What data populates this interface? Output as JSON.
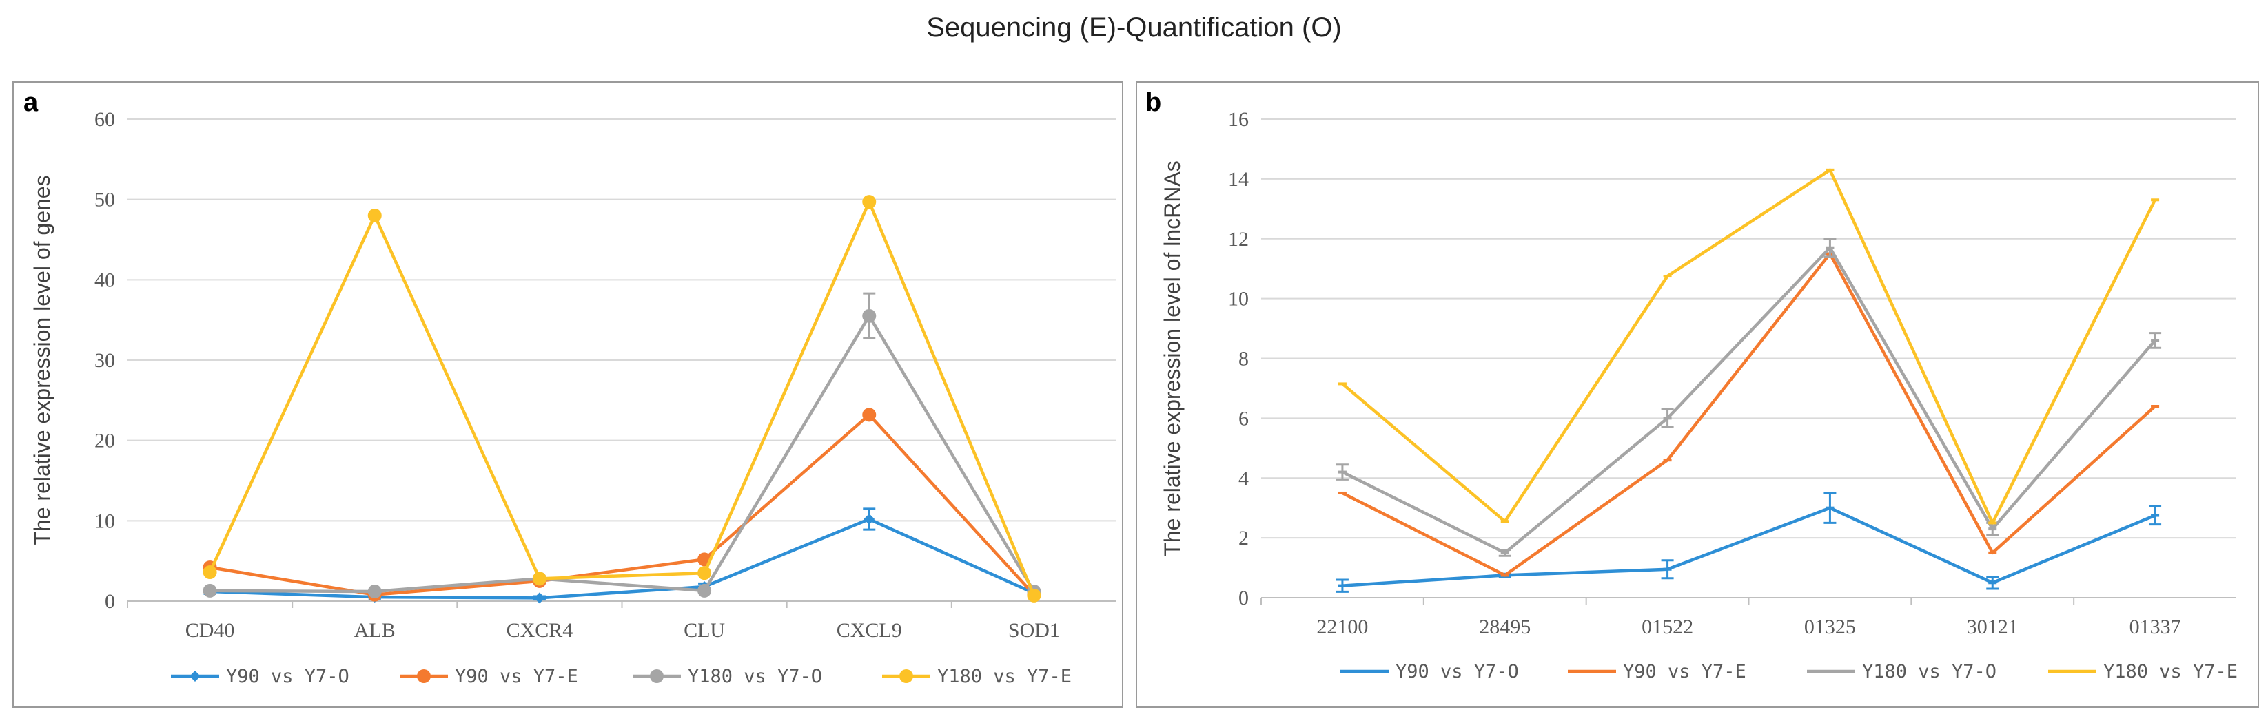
{
  "figure_title": "Sequencing (E)-Quantification (O)",
  "colors": {
    "Y90 vs Y7-O": "#2e8fd6",
    "Y90 vs Y7-E": "#f47a2f",
    "Y180 vs Y7-O": "#a5a5a5",
    "Y180 vs Y7-E": "#fcc226",
    "grid": "#d9d9d9",
    "axis": "#bfbfbf"
  },
  "chart_data": [
    {
      "panel": "a",
      "type": "line",
      "ylabel": "The relative expression level of genes",
      "xlabel": "",
      "ylim": [
        0,
        60
      ],
      "yticks": [
        0,
        10,
        20,
        30,
        40,
        50,
        60
      ],
      "categories": [
        "CD40",
        "ALB",
        "CXCR4",
        "CLU",
        "CXCL9",
        "SOD1"
      ],
      "grid": true,
      "legend": "bottom",
      "series": [
        {
          "name": "Y90 vs Y7-O",
          "marker": "diamond",
          "values": [
            1.2,
            0.5,
            0.4,
            1.8,
            10.2,
            1.0
          ],
          "errors": [
            0.3,
            0.2,
            0.2,
            0.4,
            1.3,
            0.2
          ]
        },
        {
          "name": "Y90 vs Y7-E",
          "marker": "circle",
          "values": [
            4.2,
            0.8,
            2.5,
            5.2,
            23.2,
            0.8
          ],
          "errors": null
        },
        {
          "name": "Y180 vs Y7-O",
          "marker": "circle",
          "values": [
            1.3,
            1.2,
            2.8,
            1.3,
            35.5,
            1.2
          ],
          "errors": [
            0.3,
            0.2,
            0.3,
            0.3,
            2.8,
            0.2
          ]
        },
        {
          "name": "Y180 vs Y7-E",
          "marker": "circle",
          "values": [
            3.6,
            48.0,
            2.8,
            3.5,
            49.7,
            0.7
          ],
          "errors": null
        }
      ]
    },
    {
      "panel": "b",
      "type": "line",
      "ylabel": "The relative expression level of lncRNAs",
      "xlabel": "",
      "ylim": [
        0,
        16
      ],
      "yticks": [
        0,
        2,
        4,
        6,
        8,
        10,
        12,
        14,
        16
      ],
      "categories": [
        "22100",
        "28495",
        "01522",
        "01325",
        "30121",
        "01337"
      ],
      "grid": true,
      "legend": "bottom",
      "series": [
        {
          "name": "Y90 vs Y7-O",
          "marker": "dash",
          "values": [
            0.4,
            0.75,
            0.95,
            3.0,
            0.5,
            2.75
          ],
          "errors": [
            0.2,
            0.05,
            0.3,
            0.5,
            0.2,
            0.3
          ]
        },
        {
          "name": "Y90 vs Y7-E",
          "marker": "dash",
          "values": [
            3.5,
            0.75,
            4.6,
            11.5,
            1.5,
            6.4
          ],
          "errors": null
        },
        {
          "name": "Y180 vs Y7-O",
          "marker": "dash",
          "values": [
            4.2,
            1.5,
            6.0,
            11.7,
            2.3,
            8.6
          ],
          "errors": [
            0.25,
            0.1,
            0.3,
            0.3,
            0.2,
            0.25
          ]
        },
        {
          "name": "Y180 vs Y7-E",
          "marker": "dash",
          "values": [
            7.15,
            2.55,
            10.75,
            14.3,
            2.5,
            13.3
          ],
          "errors": null
        }
      ]
    }
  ]
}
